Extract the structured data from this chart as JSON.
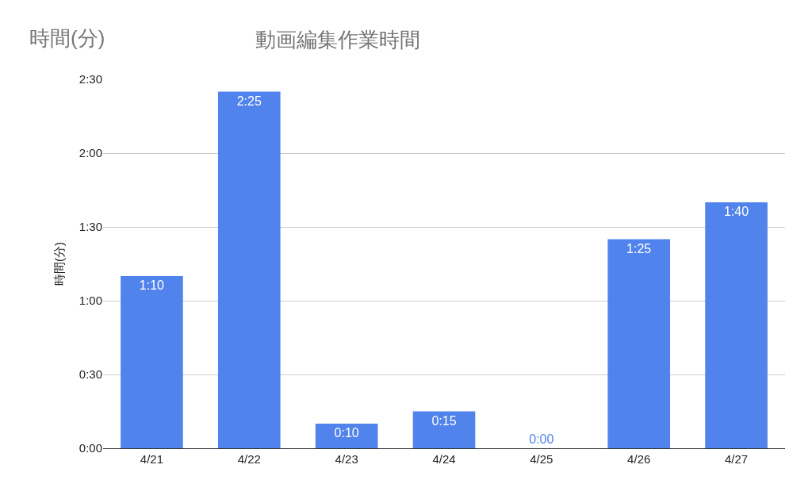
{
  "chart_data": {
    "type": "bar",
    "title": "動画編集作業時間",
    "ylabel": "時間(分)",
    "annotations": [
      "時間(分)"
    ],
    "categories": [
      "4/21",
      "4/22",
      "4/23",
      "4/24",
      "4/25",
      "4/26",
      "4/27"
    ],
    "values": [
      70,
      145,
      10,
      15,
      0,
      85,
      100
    ],
    "value_labels": [
      "1:10",
      "2:25",
      "0:10",
      "0:15",
      "0:00",
      "1:25",
      "1:40"
    ],
    "color": "#5083ec",
    "ylim": [
      0,
      150
    ],
    "yticks": [
      {
        "value": 0,
        "label": "0:00"
      },
      {
        "value": 30,
        "label": "0:30"
      },
      {
        "value": 60,
        "label": "1:00"
      },
      {
        "value": 90,
        "label": "1:30"
      },
      {
        "value": 120,
        "label": "2:00"
      },
      {
        "value": 150,
        "label": "2:30"
      }
    ],
    "grid": "y",
    "legend": false
  }
}
